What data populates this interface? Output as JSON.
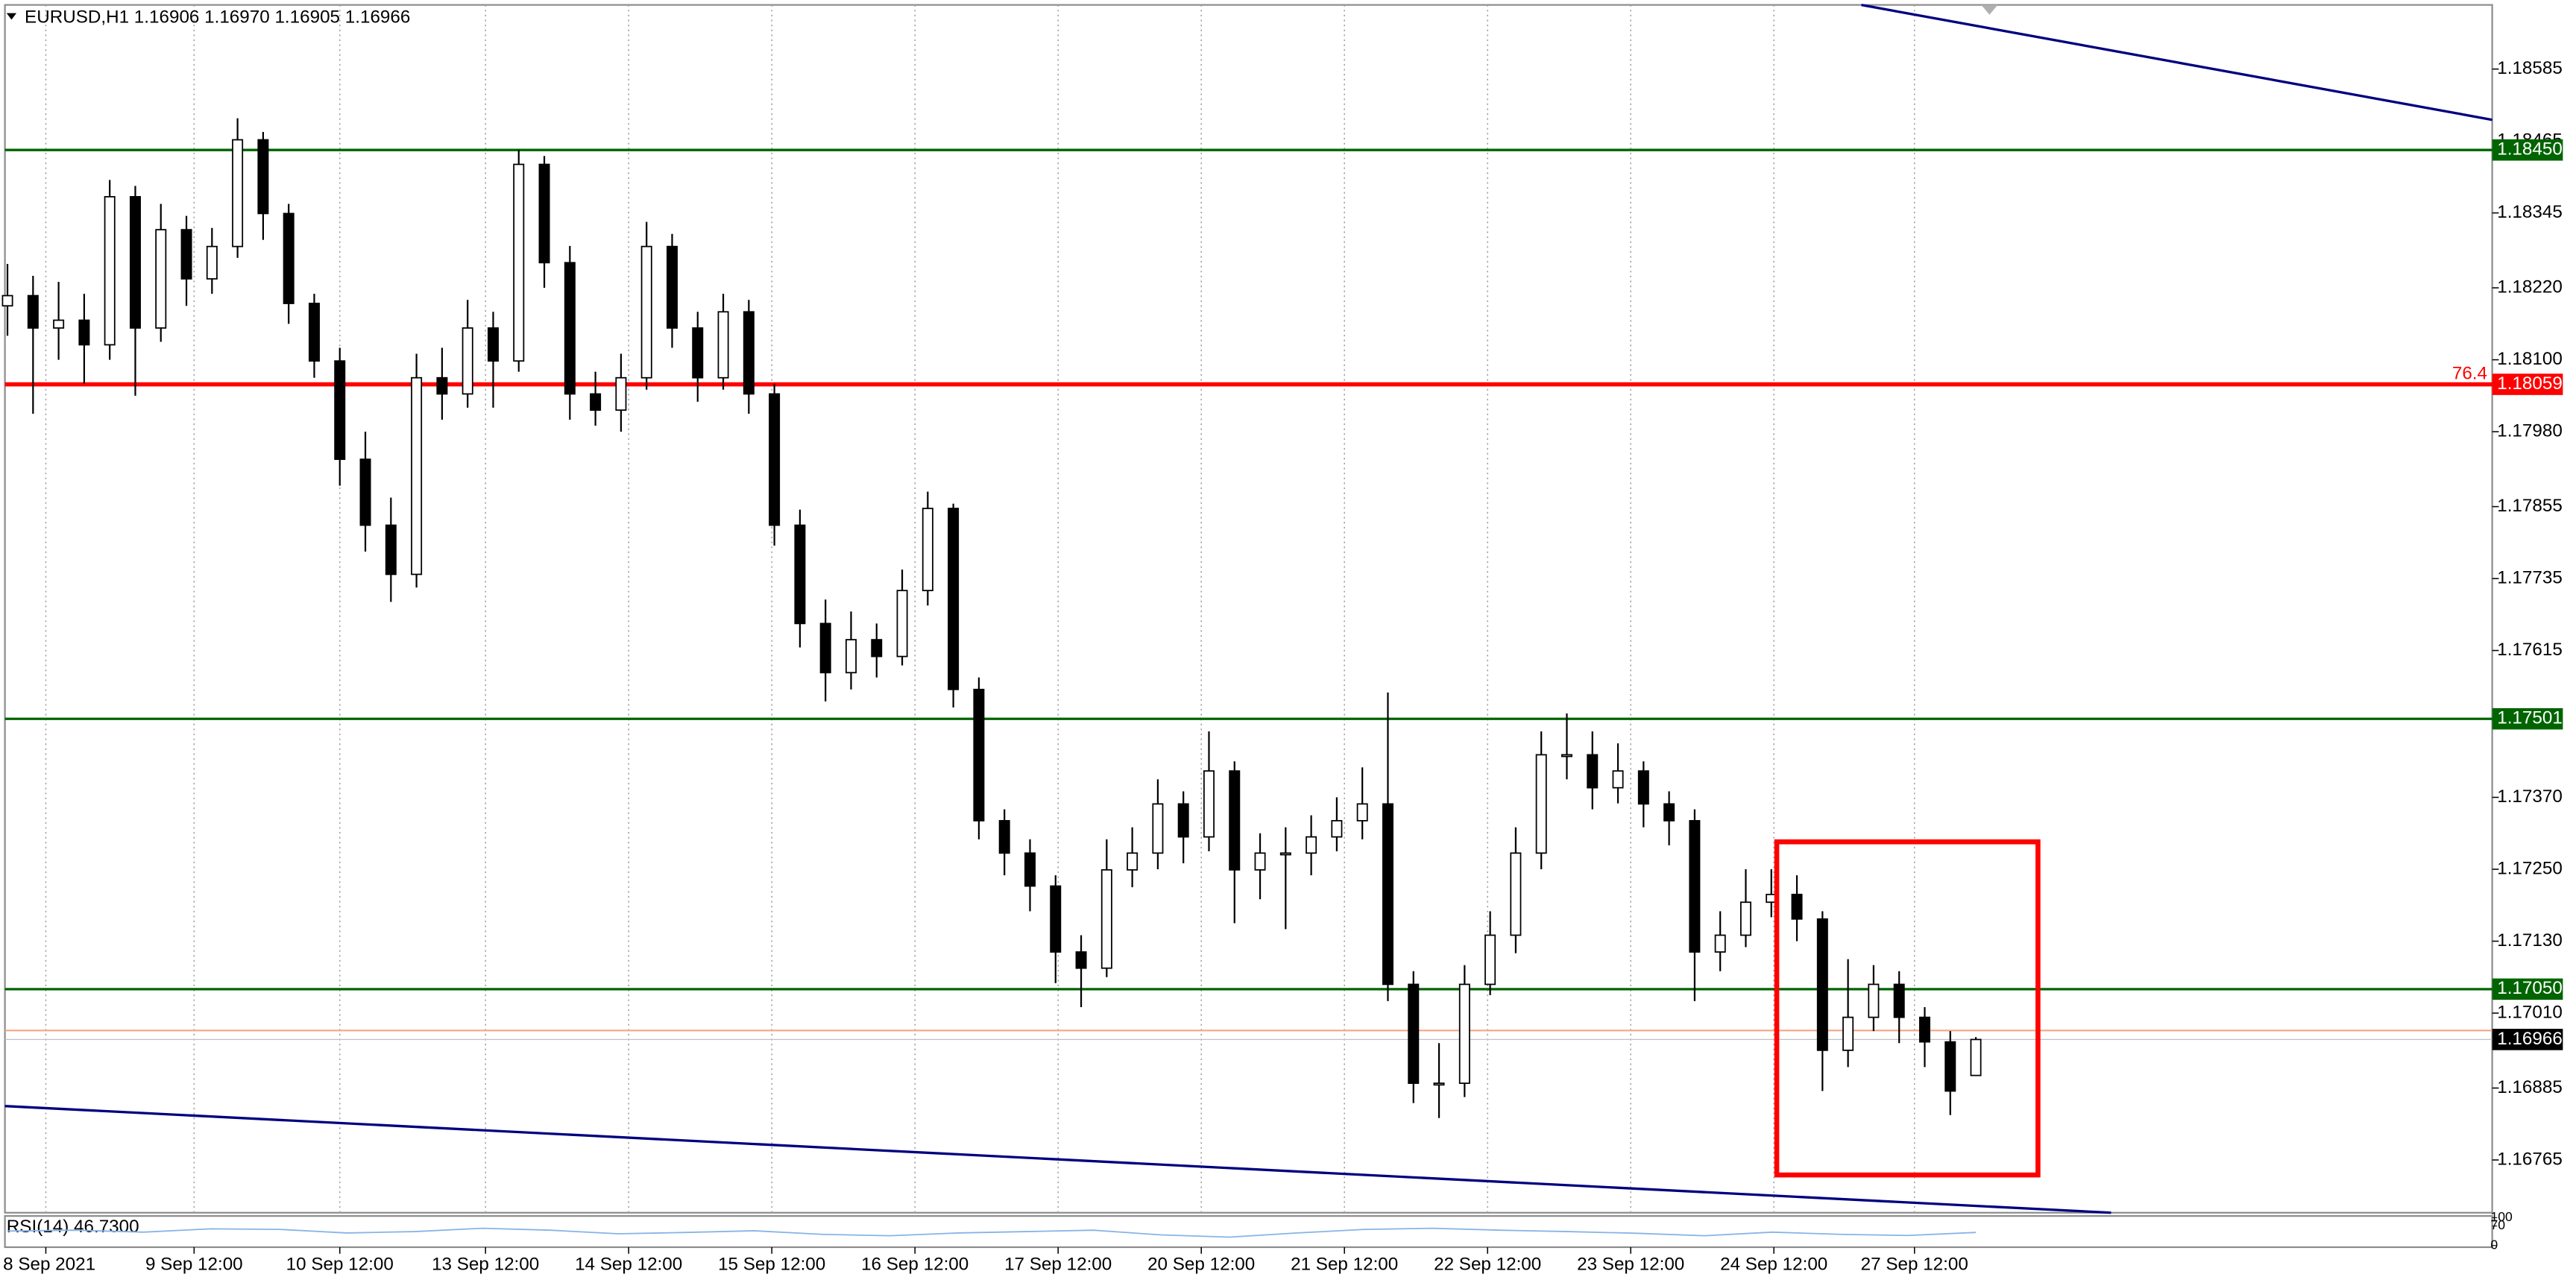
{
  "chart_data": {
    "type": "candlestick",
    "title": "EURUSD,H1  1.16906 1.16970 1.16905 1.16966",
    "xlim": [
      -0.1,
      97.2
    ],
    "ylim": [
      1.16677,
      1.18692
    ],
    "xticks": [
      {
        "value": 1.5,
        "label": "8 Sep 2021"
      },
      {
        "value": 7.3,
        "label": "9 Sep 12:00"
      },
      {
        "value": 13.0,
        "label": "10 Sep 12:00"
      },
      {
        "value": 18.7,
        "label": "13 Sep 12:00"
      },
      {
        "value": 24.3,
        "label": "14 Sep 12:00"
      },
      {
        "value": 29.9,
        "label": "15 Sep 12:00"
      },
      {
        "value": 35.5,
        "label": "16 Sep 12:00"
      },
      {
        "value": 41.1,
        "label": "17 Sep 12:00"
      },
      {
        "value": 46.7,
        "label": "20 Sep 12:00"
      },
      {
        "value": 52.3,
        "label": "21 Sep 12:00"
      },
      {
        "value": 57.9,
        "label": "22 Sep 12:00"
      },
      {
        "value": 63.5,
        "label": "23 Sep 12:00"
      },
      {
        "value": 69.1,
        "label": "24 Sep 12:00"
      },
      {
        "value": 74.6,
        "label": "27 Sep 12:00"
      }
    ],
    "yticks": [
      1.18585,
      1.18465,
      1.18345,
      {
        "value": 1.1822,
        "label": "1.18220"
      },
      {
        "value": 1.181,
        "label": "1.18100"
      },
      {
        "value": 1.1798,
        "label": "1.17980"
      },
      1.17855,
      1.17735,
      1.17615,
      {
        "value": 1.1737,
        "label": "1.17370"
      },
      {
        "value": 1.1725,
        "label": "1.17250"
      },
      {
        "value": 1.1713,
        "label": "1.17130"
      },
      {
        "value": 1.1701,
        "label": "1.17010"
      },
      1.16885,
      1.16765
    ],
    "up_color": "#ffffff",
    "down_color": "#000000",
    "open": [
      1.1819,
      1.18207,
      1.18153,
      1.18166,
      1.18125,
      1.18372,
      1.18153,
      1.18317,
      1.18235,
      1.18289,
      1.18467,
      1.18344,
      1.18194,
      1.18098,
      1.17934,
      1.17824,
      1.17742,
      1.1807,
      1.18043,
      1.18153,
      1.18098,
      1.18426,
      1.18262,
      1.18043,
      1.18016,
      1.1807,
      1.18289,
      1.18153,
      1.1807,
      1.1818,
      1.18043,
      1.17824,
      1.1766,
      1.17578,
      1.17633,
      1.17605,
      1.17715,
      1.17852,
      1.1755,
      1.17331,
      1.17277,
      1.17222,
      1.17112,
      1.17085,
      1.17249,
      1.17277,
      1.17359,
      1.17304,
      1.17414,
      1.17249,
      1.17277,
      1.17277,
      1.17304,
      1.17331,
      1.17359,
      1.17058,
      1.16893,
      1.16893,
      1.17058,
      1.1714,
      1.17277,
      1.17441,
      1.17441,
      1.17386,
      1.17414,
      1.17359,
      1.17331,
      1.17112,
      1.1714,
      1.17195,
      1.17208,
      1.17167,
      1.16948,
      1.17003,
      1.17058,
      1.17003,
      1.16962,
      1.16906
    ],
    "high": [
      1.1826,
      1.1824,
      1.1823,
      1.1821,
      1.184,
      1.1839,
      1.1836,
      1.1834,
      1.1832,
      1.18503,
      1.1848,
      1.1836,
      1.1821,
      1.1812,
      1.1798,
      1.1787,
      1.1811,
      1.1812,
      1.182,
      1.1818,
      1.1845,
      1.1844,
      1.1829,
      1.1808,
      1.1811,
      1.1833,
      1.1831,
      1.1818,
      1.1821,
      1.182,
      1.1806,
      1.1785,
      1.177,
      1.1768,
      1.1766,
      1.1775,
      1.1788,
      1.1786,
      1.1757,
      1.1735,
      1.173,
      1.1724,
      1.1714,
      1.173,
      1.1732,
      1.174,
      1.1738,
      1.1748,
      1.1743,
      1.1731,
      1.1732,
      1.1734,
      1.1737,
      1.1742,
      1.17545,
      1.1708,
      1.1696,
      1.1709,
      1.1718,
      1.1732,
      1.1748,
      1.1751,
      1.1748,
      1.1746,
      1.1743,
      1.1738,
      1.1735,
      1.1718,
      1.1725,
      1.1725,
      1.1724,
      1.1718,
      1.171,
      1.1709,
      1.1708,
      1.1702,
      1.1698,
      1.1697
    ],
    "low": [
      1.1814,
      1.1801,
      1.181,
      1.1806,
      1.181,
      1.1804,
      1.1813,
      1.1819,
      1.1821,
      1.1827,
      1.183,
      1.1816,
      1.1807,
      1.1789,
      1.1778,
      1.17696,
      1.1772,
      1.18,
      1.1802,
      1.1802,
      1.1808,
      1.1822,
      1.18,
      1.1799,
      1.1798,
      1.1805,
      1.1812,
      1.1803,
      1.1805,
      1.1801,
      1.1779,
      1.1762,
      1.1753,
      1.1755,
      1.1757,
      1.1759,
      1.1769,
      1.1752,
      1.173,
      1.1724,
      1.1718,
      1.1706,
      1.1702,
      1.1707,
      1.1722,
      1.1725,
      1.1726,
      1.1728,
      1.1716,
      1.172,
      1.1715,
      1.1724,
      1.1728,
      1.173,
      1.1703,
      1.1686,
      1.16835,
      1.1687,
      1.1704,
      1.1711,
      1.1725,
      1.174,
      1.1735,
      1.1736,
      1.1732,
      1.1729,
      1.1703,
      1.1708,
      1.1712,
      1.1717,
      1.1713,
      1.1688,
      1.1692,
      1.1698,
      1.1696,
      1.1692,
      1.1684,
      1.16905
    ],
    "close": [
      1.18207,
      1.18153,
      1.18166,
      1.18125,
      1.18372,
      1.18153,
      1.18317,
      1.18235,
      1.18289,
      1.18467,
      1.18344,
      1.18194,
      1.18098,
      1.17934,
      1.17824,
      1.17742,
      1.1807,
      1.18043,
      1.18153,
      1.18098,
      1.18426,
      1.18262,
      1.18043,
      1.18016,
      1.1807,
      1.18289,
      1.18153,
      1.1807,
      1.1818,
      1.18043,
      1.17824,
      1.1766,
      1.17578,
      1.17633,
      1.17605,
      1.17715,
      1.17852,
      1.1755,
      1.17331,
      1.17277,
      1.17222,
      1.17112,
      1.17085,
      1.17249,
      1.17277,
      1.17359,
      1.17304,
      1.17414,
      1.17249,
      1.17277,
      1.17277,
      1.17304,
      1.17331,
      1.17359,
      1.17058,
      1.16893,
      1.16893,
      1.17058,
      1.1714,
      1.17277,
      1.17441,
      1.17441,
      1.17386,
      1.17414,
      1.17359,
      1.17331,
      1.17112,
      1.1714,
      1.17195,
      1.17208,
      1.17167,
      1.16948,
      1.17003,
      1.17058,
      1.17003,
      1.16962,
      1.1688,
      1.16966
    ],
    "levels": [
      {
        "value": 1.1845,
        "label": "1.18450",
        "color": "#006400"
      },
      {
        "value": 1.18059,
        "label": "1.18059",
        "color": "#ff0000",
        "tag": "76.4"
      },
      {
        "value": 1.17501,
        "label": "1.17501",
        "color": "#006400"
      },
      {
        "value": 1.1705,
        "label": "1.17050",
        "color": "#006400"
      }
    ],
    "ask_line": {
      "value": 1.16981,
      "color": "#f4a582"
    },
    "last_price": {
      "value": 1.16966,
      "label": "1.16966"
    },
    "rsi": {
      "title": "RSI(14) 46.7300",
      "color": "#87b4e6",
      "ylim": [
        0,
        100
      ],
      "yticks": [
        0,
        70,
        100
      ],
      "values": [
        52,
        55,
        48,
        60,
        58,
        45,
        50,
        62,
        55,
        42,
        47,
        53,
        40,
        35,
        45,
        50,
        55,
        38,
        30,
        45,
        58,
        62,
        55,
        50,
        44,
        35,
        48,
        40,
        36,
        47
      ]
    }
  }
}
